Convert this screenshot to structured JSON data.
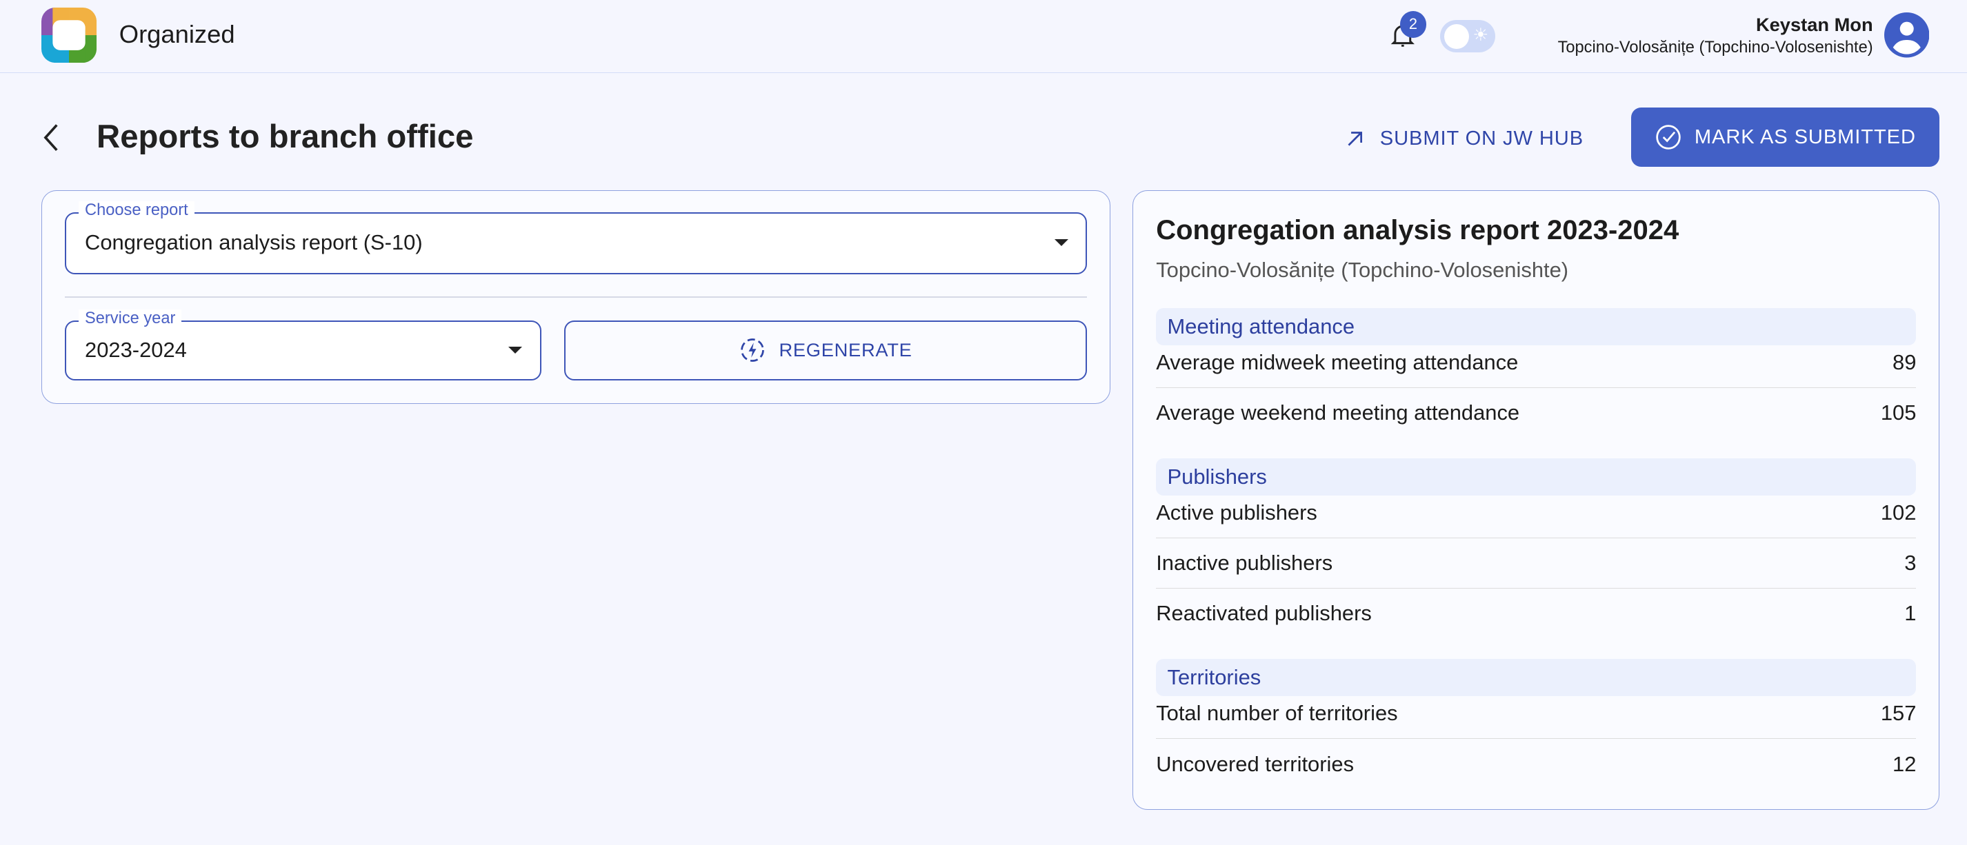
{
  "header": {
    "app_name": "Organized",
    "notification_count": "2",
    "user_name": "Keystan Mon",
    "congregation": "Topcino-Volosănițe (Topchino-Volosenishte)",
    "theme": "light"
  },
  "page": {
    "title": "Reports to branch office",
    "submit_jw_hub": "SUBMIT ON JW HUB",
    "mark_submitted": "MARK AS SUBMITTED"
  },
  "form": {
    "report_label": "Choose report",
    "report_value": "Congregation analysis report (S-10)",
    "year_label": "Service year",
    "year_value": "2023-2024",
    "regenerate": "REGENERATE"
  },
  "report": {
    "title": "Congregation analysis report 2023-2024",
    "subtitle": "Topcino-Volosănițe (Topchino-Volosenishte)",
    "sections": [
      {
        "title": "Meeting attendance",
        "rows": [
          {
            "label": "Average midweek meeting attendance",
            "value": "89"
          },
          {
            "label": "Average weekend meeting attendance",
            "value": "105"
          }
        ]
      },
      {
        "title": "Publishers",
        "rows": [
          {
            "label": "Active publishers",
            "value": "102"
          },
          {
            "label": "Inactive publishers",
            "value": "3"
          },
          {
            "label": "Reactivated publishers",
            "value": "1"
          }
        ]
      },
      {
        "title": "Territories",
        "rows": [
          {
            "label": "Total number of territories",
            "value": "157"
          },
          {
            "label": "Uncovered territories",
            "value": "12"
          }
        ]
      }
    ]
  },
  "colors": {
    "accent": "#4260c6",
    "background": "#f5f6fe"
  }
}
